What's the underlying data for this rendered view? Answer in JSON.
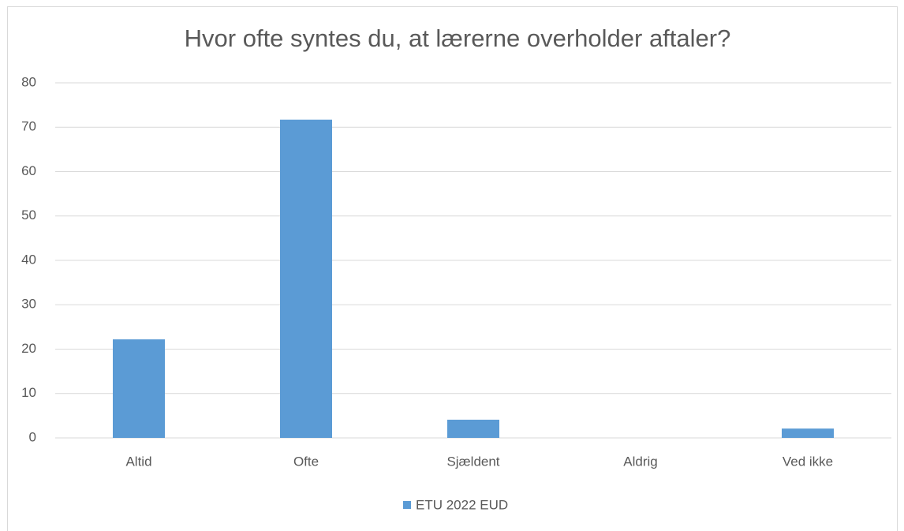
{
  "chart_data": {
    "type": "bar",
    "title": "Hvor ofte syntes du, at lærerne overholder aftaler?",
    "categories": [
      "Altid",
      "Ofte",
      "Sjældent",
      "Aldrig",
      "Ved ikke"
    ],
    "series": [
      {
        "name": "ETU 2022 EUD",
        "color": "#5b9bd5",
        "values": [
          22.2,
          71.7,
          4.1,
          0,
          2.1
        ]
      }
    ],
    "ylim": [
      0,
      80
    ],
    "yticks": [
      0,
      10,
      20,
      30,
      40,
      50,
      60,
      70,
      80
    ],
    "grid": true,
    "legend": "bottom"
  }
}
